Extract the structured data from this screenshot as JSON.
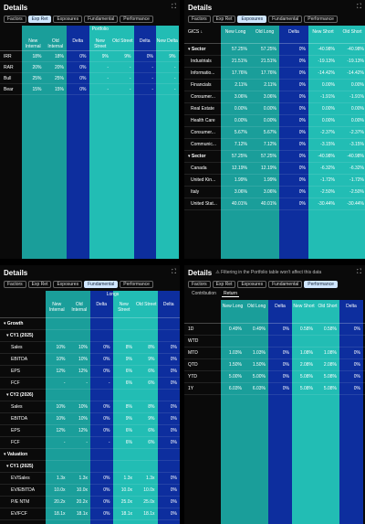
{
  "tabs": [
    "Factors",
    "Exp Ret",
    "Exposures",
    "Fundamental",
    "Performance"
  ],
  "panel1": {
    "title": "Details",
    "active_tab": 1,
    "group_header": "Portfolio",
    "columns": [
      "",
      "New Internal",
      "Old Internal",
      "Delta",
      "New Street",
      "Old Street",
      "Delta",
      "New Delta"
    ],
    "rows": [
      {
        "label": "IRR",
        "vals": [
          "18%",
          "18%",
          "0%",
          "9%",
          "9%",
          "0%",
          "9%"
        ]
      },
      {
        "label": "RAR",
        "vals": [
          "20%",
          "20%",
          "0%",
          "-",
          "-",
          "-",
          "-"
        ]
      },
      {
        "label": "Bull",
        "vals": [
          "25%",
          "25%",
          "0%",
          "-",
          "-",
          "-",
          "-"
        ]
      },
      {
        "label": "Bear",
        "vals": [
          "15%",
          "15%",
          "0%",
          "-",
          "-",
          "-",
          "-"
        ]
      }
    ]
  },
  "panel2": {
    "title": "Details",
    "active_tab": 2,
    "columns": [
      "GICS ↓",
      "New Long",
      "Old Long",
      "Delta",
      "New Short",
      "Old Short"
    ],
    "rows": [
      {
        "label": "Sector",
        "bold": true,
        "lvl": 0,
        "vals": [
          "57.25%",
          "57.25%",
          "0%",
          "-40.98%",
          "-40.98%"
        ]
      },
      {
        "label": "Industrials",
        "lvl": 1,
        "vals": [
          "21.51%",
          "21.51%",
          "0%",
          "-19.13%",
          "-19.13%"
        ]
      },
      {
        "label": "Informatio...",
        "lvl": 1,
        "vals": [
          "17.76%",
          "17.76%",
          "0%",
          "-14.42%",
          "-14.42%"
        ]
      },
      {
        "label": "Financials",
        "lvl": 1,
        "vals": [
          "2.11%",
          "2.11%",
          "0%",
          "0.00%",
          "0.00%"
        ]
      },
      {
        "label": "Consumer...",
        "lvl": 1,
        "vals": [
          "3.06%",
          "3.06%",
          "0%",
          "-1.91%",
          "-1.91%"
        ]
      },
      {
        "label": "Real Estate",
        "lvl": 1,
        "vals": [
          "0.00%",
          "0.00%",
          "0%",
          "0.00%",
          "0.00%"
        ]
      },
      {
        "label": "Health Care",
        "lvl": 1,
        "vals": [
          "0.00%",
          "0.00%",
          "0%",
          "0.00%",
          "0.00%"
        ]
      },
      {
        "label": "Consumer...",
        "lvl": 1,
        "vals": [
          "5.67%",
          "5.67%",
          "0%",
          "-2.37%",
          "-2.37%"
        ]
      },
      {
        "label": "Communic...",
        "lvl": 1,
        "vals": [
          "7.12%",
          "7.12%",
          "0%",
          "-3.15%",
          "-3.15%"
        ]
      },
      {
        "label": "Sector",
        "bold": true,
        "lvl": 0,
        "vals": [
          "57.25%",
          "57.25%",
          "0%",
          "-40.98%",
          "-40.98%"
        ]
      },
      {
        "label": "Canada",
        "lvl": 1,
        "vals": [
          "12.19%",
          "12.19%",
          "0%",
          "-6.32%",
          "-6.32%"
        ]
      },
      {
        "label": "United Kin...",
        "lvl": 1,
        "vals": [
          "1.99%",
          "1.99%",
          "0%",
          "-1.72%",
          "-1.72%"
        ]
      },
      {
        "label": "Italy",
        "lvl": 1,
        "vals": [
          "3.06%",
          "3.06%",
          "0%",
          "-2.50%",
          "-2.50%"
        ]
      },
      {
        "label": "United Stat...",
        "lvl": 1,
        "vals": [
          "40.01%",
          "40.01%",
          "0%",
          "-30.44%",
          "-30.44%"
        ]
      }
    ]
  },
  "panel3": {
    "title": "Details",
    "active_tab": 3,
    "group_header": "Longs",
    "columns": [
      "",
      "New Internal",
      "Old Internal",
      "Delta",
      "New Street",
      "Old Street",
      "Delta"
    ],
    "rows": [
      {
        "label": "Growth",
        "bold": true,
        "lvl": 0,
        "vals": [
          "",
          "",
          "",
          "",
          "",
          ""
        ]
      },
      {
        "label": "CY1 (2025)",
        "bold": true,
        "lvl": 1,
        "vals": [
          "",
          "",
          "",
          "",
          "",
          ""
        ]
      },
      {
        "label": "Sales",
        "lvl": 2,
        "vals": [
          "10%",
          "10%",
          "0%",
          "8%",
          "8%",
          "0%"
        ]
      },
      {
        "label": "EBITDA",
        "lvl": 2,
        "vals": [
          "10%",
          "10%",
          "0%",
          "9%",
          "9%",
          "0%"
        ]
      },
      {
        "label": "EPS",
        "lvl": 2,
        "vals": [
          "12%",
          "12%",
          "0%",
          "6%",
          "6%",
          "0%"
        ]
      },
      {
        "label": "FCF",
        "lvl": 2,
        "vals": [
          "-",
          "-",
          "-",
          "6%",
          "6%",
          "0%"
        ]
      },
      {
        "label": "CY2 (2026)",
        "bold": true,
        "lvl": 1,
        "vals": [
          "",
          "",
          "",
          "",
          "",
          ""
        ]
      },
      {
        "label": "Sales",
        "lvl": 2,
        "vals": [
          "10%",
          "10%",
          "0%",
          "8%",
          "8%",
          "0%"
        ]
      },
      {
        "label": "EBITDA",
        "lvl": 2,
        "vals": [
          "10%",
          "10%",
          "0%",
          "9%",
          "9%",
          "0%"
        ]
      },
      {
        "label": "EPS",
        "lvl": 2,
        "vals": [
          "12%",
          "12%",
          "0%",
          "6%",
          "6%",
          "0%"
        ]
      },
      {
        "label": "FCF",
        "lvl": 2,
        "vals": [
          "-",
          "-",
          "-",
          "6%",
          "6%",
          "0%"
        ]
      },
      {
        "label": "Valuation",
        "bold": true,
        "lvl": 0,
        "vals": [
          "",
          "",
          "",
          "",
          "",
          ""
        ]
      },
      {
        "label": "CY1 (2025)",
        "bold": true,
        "lvl": 1,
        "vals": [
          "",
          "",
          "",
          "",
          "",
          ""
        ]
      },
      {
        "label": "EV/Sales",
        "lvl": 2,
        "vals": [
          "1.3x",
          "1.3x",
          "0%",
          "1.3x",
          "1.3x",
          "0%"
        ]
      },
      {
        "label": "EV/EBITDA",
        "lvl": 2,
        "vals": [
          "10.0x",
          "10.0x",
          "0%",
          "10.0x",
          "10.0x",
          "0%"
        ]
      },
      {
        "label": "P/E NTM",
        "lvl": 2,
        "vals": [
          "20.2x",
          "20.2x",
          "0%",
          "25.0x",
          "25.0x",
          "0%"
        ]
      },
      {
        "label": "EV/FCF",
        "lvl": 2,
        "vals": [
          "18.1x",
          "18.1x",
          "0%",
          "18.1x",
          "18.1x",
          "0%"
        ]
      }
    ]
  },
  "panel4": {
    "title": "Details",
    "note": "⚠ Filtering in the Portfolio table won't affect this data",
    "active_tab": 4,
    "subtabs": [
      "Contribution",
      "Return"
    ],
    "active_subtab": 1,
    "columns": [
      "",
      "New Long",
      "Old Long",
      "Delta",
      "New Short",
      "Old Short",
      "Delta"
    ],
    "rows": [
      {
        "label": "1D",
        "vals": [
          "0.49%",
          "0.49%",
          "0%",
          "0.58%",
          "0.58%",
          "0%"
        ]
      },
      {
        "label": "WTD",
        "vals": [
          "",
          "",
          "",
          "",
          "",
          ""
        ]
      },
      {
        "label": "MTD",
        "vals": [
          "1.03%",
          "1.03%",
          "0%",
          "1.08%",
          "1.08%",
          "0%"
        ]
      },
      {
        "label": "QTD",
        "vals": [
          "1.50%",
          "1.50%",
          "0%",
          "2.08%",
          "2.08%",
          "0%"
        ]
      },
      {
        "label": "YTD",
        "vals": [
          "5.00%",
          "5.00%",
          "0%",
          "5.08%",
          "5.08%",
          "0%"
        ]
      },
      {
        "label": "1Y",
        "vals": [
          "6.03%",
          "6.03%",
          "0%",
          "5.08%",
          "5.08%",
          "0%"
        ]
      }
    ]
  },
  "icons": {
    "expand": "expand-icon",
    "warning": "warning-icon",
    "chevron": "chevron-down-icon"
  }
}
